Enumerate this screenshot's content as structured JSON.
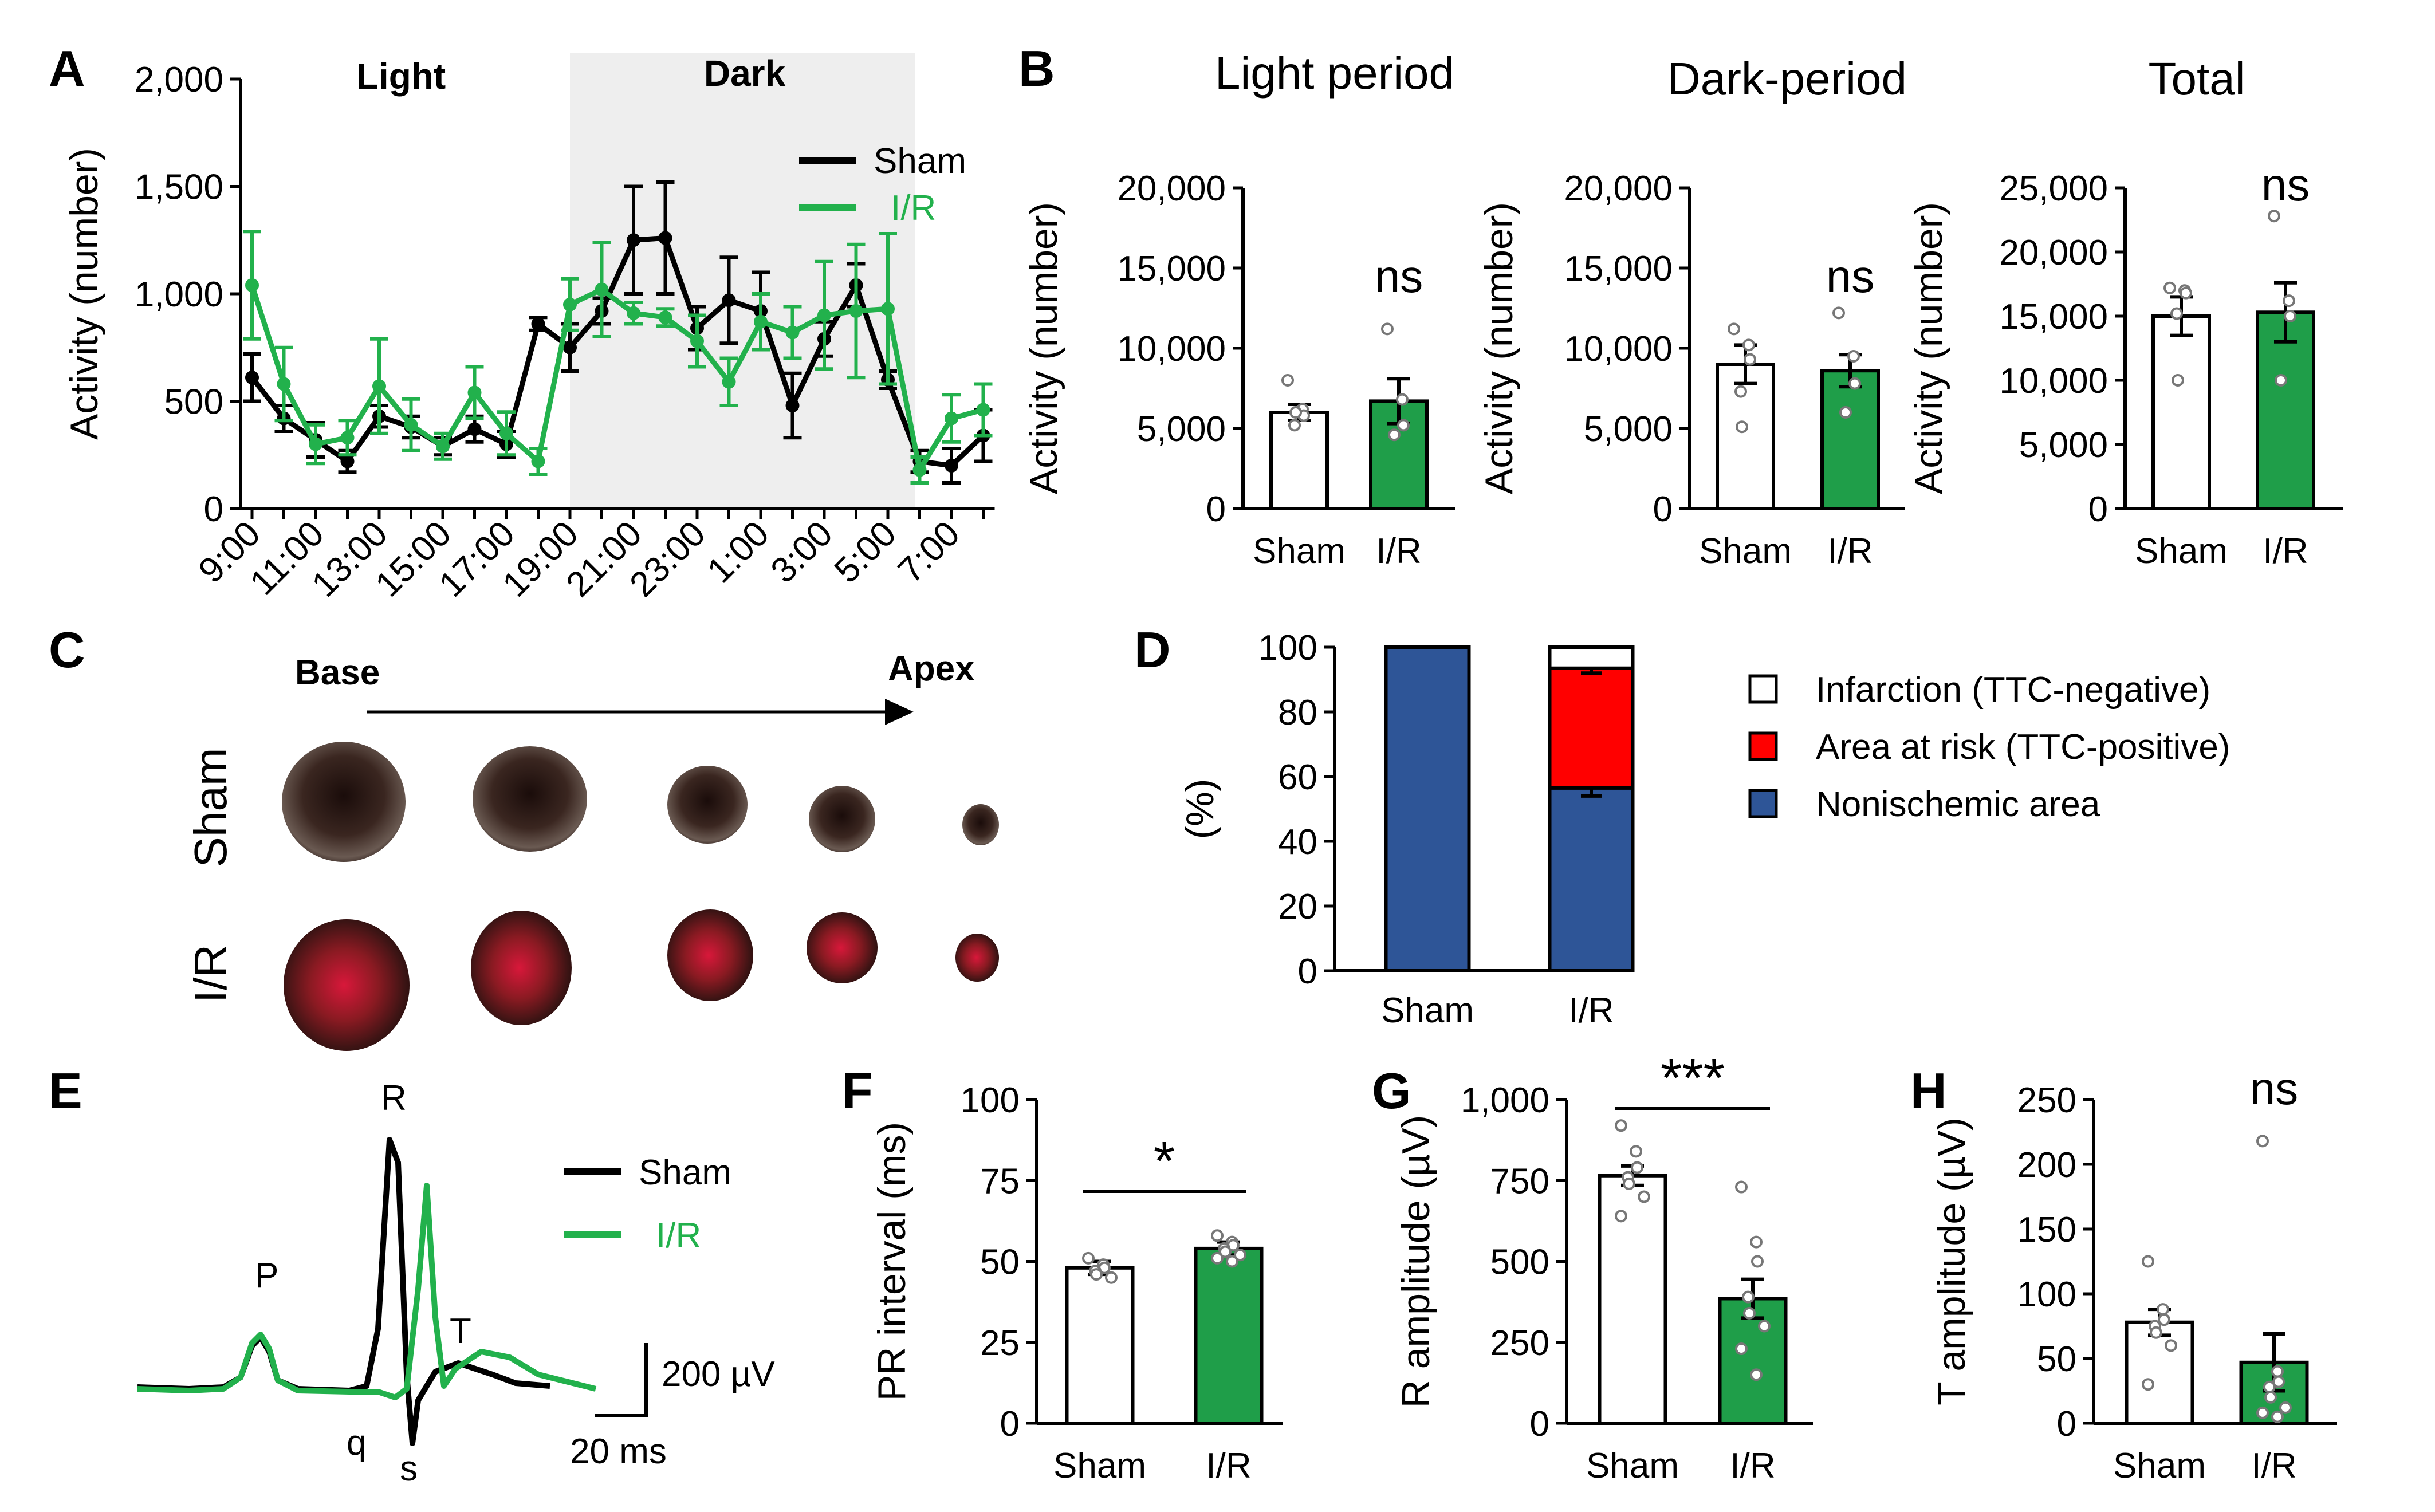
{
  "panels": {
    "A": {
      "letter": "A",
      "light_label": "Light",
      "dark_label": "Dark",
      "legend": [
        {
          "label": "Sham",
          "color": "#000000"
        },
        {
          "label": "I/R",
          "color": "#22b14c"
        }
      ]
    },
    "B": {
      "letter": "B"
    },
    "C": {
      "letter": "C",
      "base_label": "Base",
      "apex_label": "Apex",
      "row_labels": [
        "Sham",
        "I/R"
      ]
    },
    "D": {
      "letter": "D",
      "legend": [
        {
          "label": "Infarction (TTC-negative)",
          "color": "#ffffff"
        },
        {
          "label": "Area at risk (TTC-positive)",
          "color": "#ff0000"
        },
        {
          "label": "Nonischemic area",
          "color": "#2e5597"
        }
      ]
    },
    "E": {
      "letter": "E",
      "wave_labels": {
        "P": "P",
        "R": "R",
        "T": "T",
        "q": "q",
        "s": "s"
      },
      "legend": [
        {
          "label": "Sham",
          "color": "#000000"
        },
        {
          "label": "I/R",
          "color": "#22b14c"
        }
      ],
      "scale_voltage": "200 µV",
      "scale_time": "20 ms"
    },
    "F": {
      "letter": "F"
    },
    "G": {
      "letter": "G"
    },
    "H": {
      "letter": "H"
    }
  },
  "colors": {
    "sham": "#000000",
    "ir": "#22b14c",
    "ir_fill": "#1f9e49",
    "dark_shade": "#eeeeee",
    "risk": "#ff0000",
    "nonischemic": "#2e5597"
  },
  "chart_data": [
    {
      "id": "A",
      "type": "line",
      "title": "",
      "xlabel": "",
      "ylabel": "Activity (number)",
      "ylim": [
        0,
        2000
      ],
      "yticks": [
        "0",
        "500",
        "1,000",
        "1,500",
        "2,000"
      ],
      "xticks": [
        "9:00",
        "11:00",
        "13:00",
        "15:00",
        "17:00",
        "19:00",
        "21:00",
        "23:00",
        "1:00",
        "3:00",
        "5:00",
        "7:00"
      ],
      "dark_period_hours": [
        10,
        20.5
      ],
      "series": [
        {
          "name": "Sham",
          "values": [
            610,
            420,
            320,
            220,
            430,
            380,
            290,
            370,
            300,
            860,
            750,
            920,
            1250,
            1260,
            840,
            970,
            920,
            480,
            790,
            1040,
            600,
            220,
            200,
            340
          ],
          "errors": [
            110,
            60,
            80,
            50,
            50,
            50,
            40,
            60,
            60,
            30,
            110,
            60,
            250,
            260,
            100,
            200,
            180,
            150,
            80,
            100,
            40,
            50,
            80,
            120
          ]
        },
        {
          "name": "I/R",
          "values": [
            1040,
            580,
            300,
            330,
            570,
            390,
            290,
            540,
            350,
            220,
            950,
            1020,
            910,
            890,
            780,
            590,
            870,
            820,
            900,
            920,
            930,
            180,
            420,
            460
          ],
          "errors": [
            250,
            170,
            90,
            80,
            220,
            120,
            60,
            120,
            100,
            60,
            120,
            220,
            50,
            40,
            120,
            110,
            130,
            120,
            250,
            310,
            350,
            60,
            110,
            120
          ]
        }
      ]
    },
    {
      "id": "B-light",
      "type": "bar",
      "title": "Light period",
      "ylabel": "Activity (number)",
      "categories": [
        "Sham",
        "I/R"
      ],
      "values": [
        6000,
        6700
      ],
      "errors": [
        500,
        1400
      ],
      "ylim": [
        0,
        20000
      ],
      "yticks": [
        "0",
        "5,000",
        "10,000",
        "15,000",
        "20,000"
      ],
      "annotation": "ns",
      "points": [
        [
          8000,
          6200,
          5800,
          5200,
          6000
        ],
        [
          11200,
          6800,
          5200,
          4600
        ]
      ]
    },
    {
      "id": "B-dark",
      "type": "bar",
      "title": "Dark-period",
      "ylabel": "Activity (number)",
      "categories": [
        "Sham",
        "I/R"
      ],
      "values": [
        9000,
        8600
      ],
      "errors": [
        1200,
        1000
      ],
      "ylim": [
        0,
        20000
      ],
      "yticks": [
        "0",
        "5,000",
        "10,000",
        "15,000",
        "20,000"
      ],
      "annotation": "ns",
      "points": [
        [
          11200,
          10200,
          9300,
          7300,
          5100
        ],
        [
          12200,
          9500,
          7800,
          6000
        ]
      ]
    },
    {
      "id": "B-total",
      "type": "bar",
      "title": "Total",
      "ylabel": "Activity (number)",
      "categories": [
        "Sham",
        "I/R"
      ],
      "values": [
        15000,
        15300
      ],
      "errors": [
        1500,
        2300
      ],
      "ylim": [
        0,
        25000
      ],
      "yticks": [
        "0",
        "5,000",
        "10,000",
        "15,000",
        "20,000",
        "25,000"
      ],
      "annotation": "ns",
      "points": [
        [
          17200,
          17000,
          16800,
          15200,
          10000
        ],
        [
          22800,
          16200,
          15000,
          10000
        ]
      ]
    },
    {
      "id": "D",
      "type": "bar",
      "stacked": true,
      "ylabel": "(%)",
      "categories": [
        "Sham",
        "I/R"
      ],
      "ylim": [
        0,
        100
      ],
      "yticks": [
        "0",
        "20",
        "40",
        "60",
        "80",
        "100"
      ],
      "series": [
        {
          "name": "Nonischemic area",
          "values": [
            100,
            56.5
          ],
          "errors": [
            0,
            2.5
          ]
        },
        {
          "name": "Area at risk (TTC-positive)",
          "values": [
            0,
            37
          ],
          "errors": [
            0,
            1.5
          ]
        },
        {
          "name": "Infarction (TTC-negative)",
          "values": [
            0,
            6.5
          ],
          "errors": [
            0,
            0
          ]
        }
      ]
    },
    {
      "id": "F",
      "type": "bar",
      "ylabel": "PR interval (ms)",
      "categories": [
        "Sham",
        "I/R"
      ],
      "values": [
        48,
        54
      ],
      "errors": [
        2,
        2
      ],
      "ylim": [
        0,
        100
      ],
      "yticks": [
        "0",
        "25",
        "50",
        "75",
        "100"
      ],
      "annotation": "*",
      "points": [
        [
          51,
          49,
          48,
          47,
          46,
          45
        ],
        [
          58,
          56,
          55,
          54,
          53,
          52,
          51,
          50
        ]
      ]
    },
    {
      "id": "G",
      "type": "bar",
      "ylabel": "R amplitude (µV)",
      "categories": [
        "Sham",
        "I/R"
      ],
      "values": [
        765,
        385
      ],
      "errors": [
        30,
        60
      ],
      "ylim": [
        0,
        1000
      ],
      "yticks": [
        "0",
        "250",
        "500",
        "750",
        "1,000"
      ],
      "annotation": "***",
      "points": [
        [
          920,
          840,
          790,
          760,
          740,
          700,
          640
        ],
        [
          730,
          560,
          500,
          390,
          340,
          300,
          230,
          150
        ]
      ]
    },
    {
      "id": "H",
      "type": "bar",
      "ylabel": "T amplitude (µV)",
      "categories": [
        "Sham",
        "I/R"
      ],
      "values": [
        78,
        47
      ],
      "errors": [
        10,
        22
      ],
      "ylim": [
        0,
        250
      ],
      "yticks": [
        "0",
        "50",
        "100",
        "150",
        "200",
        "250"
      ],
      "annotation": "ns",
      "points": [
        [
          125,
          88,
          80,
          75,
          70,
          60,
          30
        ],
        [
          218,
          40,
          32,
          28,
          20,
          12,
          8,
          5
        ]
      ]
    }
  ]
}
